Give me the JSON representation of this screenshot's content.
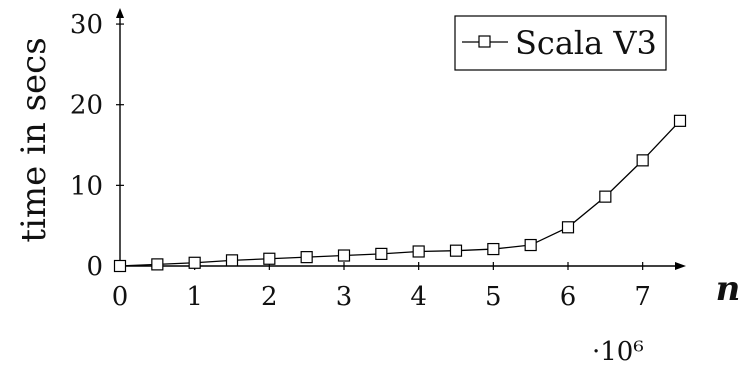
{
  "chart_data": {
    "type": "line",
    "title": "",
    "xlabel": "n",
    "ylabel": "time in secs",
    "x_scale_label": "·10⁶",
    "xlim": [
      0,
      7.5
    ],
    "ylim": [
      0,
      31
    ],
    "x_ticks": [
      "0",
      "1",
      "2",
      "3",
      "4",
      "5",
      "6",
      "7"
    ],
    "y_ticks": [
      "0",
      "10",
      "20",
      "30"
    ],
    "grid": false,
    "legend_position": "top-right",
    "series": [
      {
        "name": "Scala V3",
        "marker": "square",
        "color": "#000000",
        "x": [
          0,
          0.5,
          1,
          1.5,
          2,
          2.5,
          3,
          3.5,
          4,
          4.5,
          5,
          5.5,
          6,
          6.5,
          7,
          7.5
        ],
        "y": [
          0.0,
          0.2,
          0.4,
          0.7,
          0.9,
          1.1,
          1.3,
          1.5,
          1.8,
          1.9,
          2.1,
          2.6,
          4.8,
          8.6,
          13.1,
          18.0
        ]
      }
    ]
  }
}
